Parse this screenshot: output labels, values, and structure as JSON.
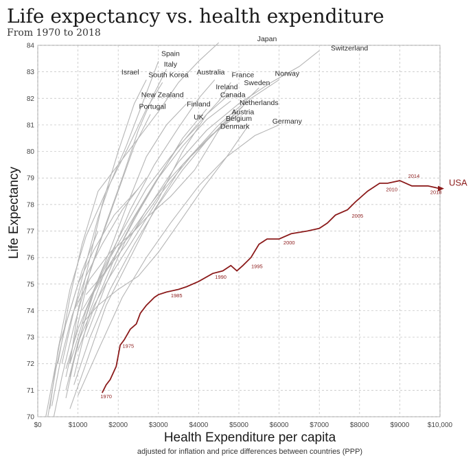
{
  "chart_data": {
    "type": "line",
    "title": "Life expectancy vs. health expenditure",
    "subtitle": "From 1970 to 2018",
    "xlabel": "Health Expenditure per capita",
    "xlabel_note": "adjusted for inflation and price differences between countries (PPP)",
    "ylabel": "Life Expectancy",
    "xlim": [
      0,
      10000
    ],
    "ylim": [
      70,
      84
    ],
    "x_ticks": [
      0,
      1000,
      2000,
      3000,
      4000,
      5000,
      6000,
      7000,
      8000,
      9000,
      10000
    ],
    "x_tick_labels": [
      "$0",
      "$1000",
      "$2000",
      "$3000",
      "$4000",
      "$5000",
      "$6000",
      "$7000",
      "$8000",
      "$9000",
      "$10,000"
    ],
    "y_ticks": [
      70,
      71,
      72,
      73,
      74,
      75,
      76,
      77,
      78,
      79,
      80,
      81,
      82,
      83,
      84
    ],
    "grid": true,
    "colors": {
      "other": "#b5b5b5",
      "usa": "#8b1a1a"
    },
    "highlight": {
      "name": "USA",
      "x": [
        1600,
        1700,
        1800,
        1950,
        2050,
        2150,
        2300,
        2450,
        2550,
        2700,
        2900,
        3000,
        3200,
        3500,
        3700,
        4000,
        4350,
        4600,
        4800,
        4950,
        5100,
        5300,
        5500,
        5700,
        6000,
        6300,
        6700,
        7000,
        7200,
        7400,
        7700,
        7900,
        8200,
        8500,
        8700,
        9000,
        9300,
        9500,
        9700,
        10000
      ],
      "y": [
        70.9,
        71.2,
        71.4,
        71.9,
        72.7,
        72.9,
        73.3,
        73.5,
        73.9,
        74.2,
        74.5,
        74.6,
        74.7,
        74.8,
        74.9,
        75.1,
        75.4,
        75.5,
        75.7,
        75.5,
        75.7,
        76.0,
        76.5,
        76.7,
        76.7,
        76.9,
        77.0,
        77.1,
        77.3,
        77.6,
        77.8,
        78.1,
        78.5,
        78.8,
        78.8,
        78.9,
        78.7,
        78.7,
        78.7,
        78.6
      ],
      "year_labels": [
        {
          "year": "1970",
          "x": 1700,
          "y": 70.7
        },
        {
          "year": "1975",
          "x": 2250,
          "y": 72.6
        },
        {
          "year": "1985",
          "x": 3450,
          "y": 74.5
        },
        {
          "year": "1990",
          "x": 4550,
          "y": 75.2
        },
        {
          "year": "1995",
          "x": 5450,
          "y": 75.6
        },
        {
          "year": "2000",
          "x": 6250,
          "y": 76.5
        },
        {
          "year": "2005",
          "x": 7950,
          "y": 77.5
        },
        {
          "year": "2010",
          "x": 8800,
          "y": 78.5
        },
        {
          "year": "2014",
          "x": 9350,
          "y": 79.0
        },
        {
          "year": "2018",
          "x": 9900,
          "y": 78.4
        }
      ]
    },
    "series": [
      {
        "name": "Japan",
        "label_x": 5700,
        "label_y": 84.15,
        "x": [
          500,
          800,
          1100,
          1500,
          2000,
          2500,
          3000,
          3500,
          4000,
          4500
        ],
        "y": [
          72.0,
          74.5,
          76.5,
          78.5,
          79.5,
          80.5,
          81.5,
          82.6,
          83.4,
          84.1
        ]
      },
      {
        "name": "Switzerland",
        "label_x": 7750,
        "label_y": 83.8,
        "x": [
          1200,
          1700,
          2200,
          2800,
          3500,
          4200,
          5000,
          5800,
          6500,
          7000
        ],
        "y": [
          73.0,
          75.0,
          76.7,
          78.0,
          79.6,
          80.8,
          81.8,
          82.6,
          83.2,
          83.8
        ]
      },
      {
        "name": "Spain",
        "label_x": 3300,
        "label_y": 83.6,
        "x": [
          600,
          900,
          1200,
          1500,
          1800,
          2200,
          2600,
          3000
        ],
        "y": [
          72.0,
          74.0,
          75.8,
          77.5,
          78.8,
          80.2,
          81.8,
          83.4
        ]
      },
      {
        "name": "Italy",
        "label_x": 3300,
        "label_y": 83.2,
        "x": [
          700,
          1000,
          1300,
          1700,
          2100,
          2500,
          2900,
          3200
        ],
        "y": [
          71.5,
          73.5,
          75.5,
          77.3,
          79.0,
          80.8,
          82.2,
          83.1
        ]
      },
      {
        "name": "Israel",
        "label_x": 2300,
        "label_y": 82.9,
        "x": [
          800,
          1000,
          1300,
          1600,
          2000,
          2400,
          2700
        ],
        "y": [
          72.0,
          74.0,
          76.0,
          78.0,
          80.0,
          81.8,
          82.7
        ]
      },
      {
        "name": "South Korea",
        "label_x": 3250,
        "label_y": 82.8,
        "x": [
          300,
          500,
          800,
          1200,
          1700,
          2200,
          2700,
          3100
        ],
        "y": [
          70.3,
          72.5,
          74.8,
          76.8,
          78.5,
          80.0,
          81.6,
          82.6
        ]
      },
      {
        "name": "Australia",
        "label_x": 4300,
        "label_y": 82.9,
        "x": [
          900,
          1300,
          1800,
          2300,
          2900,
          3500,
          4000,
          4400
        ],
        "y": [
          71.5,
          74.0,
          76.0,
          77.8,
          79.5,
          80.9,
          82.0,
          82.7
        ]
      },
      {
        "name": "France",
        "label_x": 5100,
        "label_y": 82.8,
        "x": [
          800,
          1200,
          1600,
          2100,
          2700,
          3300,
          3900,
          4500,
          4800
        ],
        "y": [
          72.0,
          74.0,
          75.5,
          77.0,
          78.6,
          79.8,
          80.9,
          81.9,
          82.6
        ]
      },
      {
        "name": "Norway",
        "label_x": 6200,
        "label_y": 82.85,
        "x": [
          900,
          1300,
          1800,
          2400,
          3000,
          3800,
          4600,
          5300,
          6000
        ],
        "y": [
          74.0,
          75.2,
          76.2,
          77.0,
          78.3,
          79.8,
          81.0,
          82.0,
          82.7
        ]
      },
      {
        "name": "Sweden",
        "label_x": 5450,
        "label_y": 82.5,
        "x": [
          1200,
          1700,
          2200,
          2700,
          3300,
          3900,
          4500,
          5100,
          5500
        ],
        "y": [
          74.6,
          75.5,
          76.5,
          77.8,
          79.0,
          80.0,
          81.0,
          81.8,
          82.4
        ]
      },
      {
        "name": "Ireland",
        "label_x": 4700,
        "label_y": 82.35,
        "x": [
          700,
          1000,
          1400,
          1800,
          2300,
          3000,
          3600,
          4200,
          4800
        ],
        "y": [
          71.0,
          72.8,
          74.2,
          75.3,
          76.5,
          78.2,
          80.0,
          81.4,
          82.2
        ]
      },
      {
        "name": "Canada",
        "label_x": 4850,
        "label_y": 82.05,
        "x": [
          1000,
          1500,
          2000,
          2500,
          3000,
          3600,
          4200,
          4800
        ],
        "y": [
          72.5,
          74.5,
          76.3,
          77.7,
          79.0,
          80.2,
          81.2,
          81.9
        ]
      },
      {
        "name": "Netherlands",
        "label_x": 5500,
        "label_y": 81.75,
        "x": [
          1100,
          1600,
          2100,
          2700,
          3300,
          3900,
          4500,
          5100
        ],
        "y": [
          74.0,
          75.3,
          76.5,
          77.5,
          78.3,
          79.3,
          80.8,
          81.7
        ]
      },
      {
        "name": "New Zealand",
        "label_x": 3100,
        "label_y": 82.05,
        "x": [
          800,
          1100,
          1400,
          1800,
          2200,
          2700,
          3200,
          3700
        ],
        "y": [
          71.5,
          73.3,
          74.8,
          76.3,
          77.9,
          79.8,
          81.0,
          81.8
        ]
      },
      {
        "name": "Austria",
        "label_x": 5100,
        "label_y": 81.4,
        "x": [
          800,
          1200,
          1700,
          2300,
          2900,
          3600,
          4300,
          5000
        ],
        "y": [
          70.3,
          72.0,
          74.2,
          76.0,
          77.8,
          79.5,
          80.6,
          81.4
        ]
      },
      {
        "name": "Finland",
        "label_x": 4000,
        "label_y": 81.7,
        "x": [
          700,
          1000,
          1400,
          1900,
          2400,
          3000,
          3600,
          4200
        ],
        "y": [
          70.7,
          72.8,
          74.7,
          76.0,
          77.5,
          79.0,
          80.5,
          81.6
        ]
      },
      {
        "name": "Portugal",
        "label_x": 2850,
        "label_y": 81.6,
        "x": [
          400,
          600,
          900,
          1200,
          1600,
          2000,
          2400,
          2800
        ],
        "y": [
          70.0,
          71.5,
          73.4,
          75.0,
          76.8,
          78.5,
          80.2,
          81.4
        ]
      },
      {
        "name": "Belgium",
        "label_x": 5000,
        "label_y": 81.15,
        "x": [
          900,
          1300,
          1800,
          2400,
          3000,
          3600,
          4200,
          4700
        ],
        "y": [
          71.2,
          73.0,
          74.8,
          76.5,
          78.0,
          79.3,
          80.4,
          81.2
        ]
      },
      {
        "name": "UK",
        "label_x": 4000,
        "label_y": 81.2,
        "x": [
          700,
          1000,
          1400,
          1800,
          2300,
          2900,
          3500,
          4000
        ],
        "y": [
          71.8,
          73.3,
          74.8,
          76.0,
          77.3,
          78.8,
          80.2,
          81.0
        ]
      },
      {
        "name": "Germany",
        "label_x": 6200,
        "label_y": 81.05,
        "x": [
          1000,
          1500,
          2100,
          2700,
          3300,
          4000,
          4700,
          5400,
          6000
        ],
        "y": [
          70.8,
          72.5,
          74.5,
          76.0,
          77.3,
          78.7,
          79.8,
          80.6,
          81.0
        ]
      },
      {
        "name": "Denmark",
        "label_x": 4900,
        "label_y": 80.85,
        "x": [
          1100,
          1500,
          2000,
          2500,
          3000,
          3600,
          4100,
          4700,
          5200
        ],
        "y": [
          73.5,
          74.2,
          74.8,
          75.3,
          76.2,
          77.5,
          78.6,
          79.8,
          80.9
        ]
      },
      {
        "name": "",
        "x": [
          200,
          350,
          550,
          800,
          1100,
          1500
        ],
        "y": [
          70.0,
          71.2,
          72.8,
          74.0,
          75.5,
          77.0
        ]
      },
      {
        "name": "",
        "x": [
          250,
          450,
          700,
          1000,
          1400,
          1900,
          2500
        ],
        "y": [
          70.0,
          71.8,
          73.5,
          75.0,
          76.3,
          77.6,
          78.6
        ]
      },
      {
        "name": "",
        "x": [
          350,
          550,
          850,
          1200,
          1600,
          2100,
          2700
        ],
        "y": [
          70.4,
          72.0,
          73.8,
          75.3,
          76.5,
          77.8,
          79.0
        ]
      }
    ]
  }
}
